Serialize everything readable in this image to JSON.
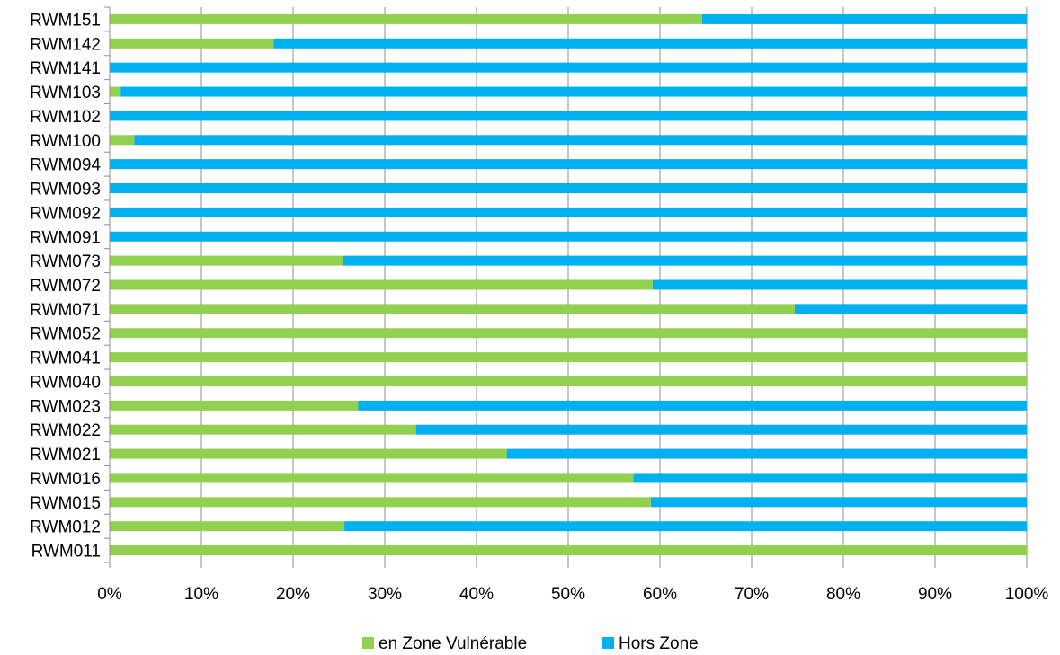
{
  "chart_data": {
    "type": "bar",
    "orientation": "horizontal",
    "stacked": "percent",
    "categories": [
      "RWM151",
      "RWM142",
      "RWM141",
      "RWM103",
      "RWM102",
      "RWM100",
      "RWM094",
      "RWM093",
      "RWM092",
      "RWM091",
      "RWM073",
      "RWM072",
      "RWM071",
      "RWM052",
      "RWM041",
      "RWM040",
      "RWM023",
      "RWM022",
      "RWM021",
      "RWM016",
      "RWM015",
      "RWM012",
      "RWM011"
    ],
    "series": [
      {
        "name": "en Zone Vulnérable",
        "color": "#92d050",
        "values": [
          64.6,
          17.9,
          0,
          1.2,
          0,
          2.7,
          0,
          0,
          0,
          0,
          25.4,
          59.2,
          74.7,
          100,
          100,
          100,
          27.1,
          33.4,
          43.3,
          57.1,
          59.0,
          25.6,
          100
        ]
      },
      {
        "name": "Hors Zone",
        "color": "#00b0f0",
        "values": [
          35.4,
          82.1,
          100,
          98.8,
          100,
          97.3,
          100,
          100,
          100,
          100,
          74.6,
          40.8,
          25.3,
          0,
          0,
          0,
          72.9,
          66.6,
          56.7,
          42.9,
          41.0,
          74.4,
          0
        ]
      }
    ],
    "xlim": [
      0,
      100
    ],
    "xticks": [
      "0%",
      "10%",
      "20%",
      "30%",
      "40%",
      "50%",
      "60%",
      "70%",
      "80%",
      "90%",
      "100%"
    ],
    "grid": "vertical",
    "legend_position": "bottom"
  }
}
